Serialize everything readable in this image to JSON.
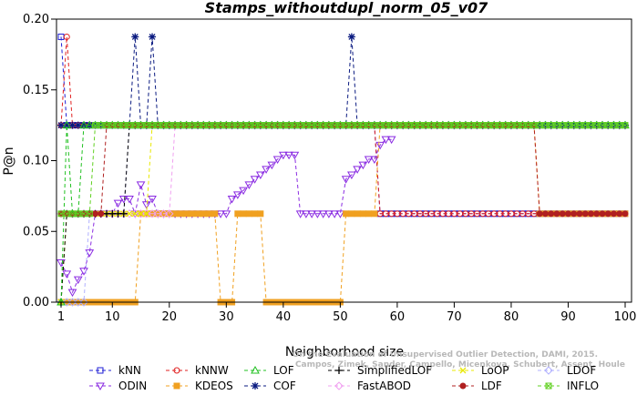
{
  "chart_data": {
    "type": "line",
    "title": "Stamps_withoutdupl_norm_05_v07",
    "xlabel": "Neighborhood size",
    "ylabel": "P@n",
    "xlim": [
      1,
      100
    ],
    "ylim": [
      0,
      0.2
    ],
    "xticks": [
      1,
      10,
      20,
      30,
      40,
      50,
      60,
      70,
      80,
      90,
      100
    ],
    "yticks": [
      0.0,
      0.05,
      0.1,
      0.15,
      0.2
    ],
    "ytick_labels": [
      "0.00",
      "0.05",
      "0.10",
      "0.15",
      "0.20"
    ],
    "grid": false,
    "legend_position": "bottom",
    "watermark_lines": [
      "Campos, Zimek, Sander, Campello, Micenkova, Schubert, Assent, Houle",
      "On the Evaluation of Unsupervised Outlier Detection, DAMI, 2015."
    ],
    "series": [
      {
        "name": "kNN",
        "color": "#1f1fd6",
        "marker": "square",
        "segments": [
          [
            1,
            0.1875,
            1
          ],
          [
            2,
            0.125,
            56
          ],
          [
            57,
            0.0625,
            100
          ]
        ]
      },
      {
        "name": "kNNW",
        "color": "#e02020",
        "marker": "circle",
        "segments": [
          [
            1,
            0.125,
            1
          ],
          [
            2,
            0.1875,
            2
          ],
          [
            3,
            0.125,
            56
          ],
          [
            57,
            0.0625,
            100
          ]
        ]
      },
      {
        "name": "LOF",
        "color": "#20c020",
        "marker": "triangle-up",
        "segments": [
          [
            1,
            0.0,
            1
          ],
          [
            2,
            0.125,
            2
          ],
          [
            3,
            0.0625,
            4
          ],
          [
            5,
            0.125,
            100
          ]
        ]
      },
      {
        "name": "SimplifiedLOF",
        "color": "#000000",
        "marker": "plus",
        "segments": [
          [
            1,
            0.0,
            1
          ],
          [
            2,
            0.0625,
            12
          ],
          [
            13,
            0.125,
            100
          ]
        ]
      },
      {
        "name": "LoOP",
        "color": "#e8e800",
        "marker": "x",
        "segments": [
          [
            1,
            0.0,
            1
          ],
          [
            2,
            0.0625,
            16
          ],
          [
            17,
            0.125,
            100
          ]
        ]
      },
      {
        "name": "LDOF",
        "color": "#b0b0ff",
        "marker": "diamond",
        "segments": [
          [
            1,
            0.0,
            5
          ],
          [
            6,
            0.0625,
            12
          ],
          [
            13,
            0.125,
            100
          ]
        ]
      },
      {
        "name": "ODIN",
        "color": "#8a2be2",
        "marker": "triangle-down",
        "points": [
          [
            1,
            0.028
          ],
          [
            2,
            0.02
          ],
          [
            3,
            0.007
          ],
          [
            4,
            0.016
          ],
          [
            5,
            0.022
          ],
          [
            6,
            0.035
          ],
          [
            7,
            0.0625
          ],
          [
            8,
            0.0625
          ],
          [
            9,
            0.0625
          ],
          [
            10,
            0.0625
          ],
          [
            11,
            0.07
          ],
          [
            12,
            0.073
          ],
          [
            13,
            0.073
          ],
          [
            14,
            0.0625
          ],
          [
            15,
            0.083
          ],
          [
            16,
            0.069
          ],
          [
            17,
            0.073
          ],
          [
            18,
            0.0625
          ],
          [
            19,
            0.0625
          ],
          [
            20,
            0.0625
          ],
          [
            21,
            0.0625
          ],
          [
            22,
            0.0625
          ],
          [
            23,
            0.0625
          ],
          [
            24,
            0.0625
          ],
          [
            25,
            0.0625
          ],
          [
            26,
            0.0625
          ],
          [
            27,
            0.0625
          ],
          [
            28,
            0.0625
          ],
          [
            29,
            0.0625
          ],
          [
            30,
            0.0625
          ],
          [
            31,
            0.073
          ],
          [
            32,
            0.076
          ],
          [
            33,
            0.079
          ],
          [
            34,
            0.083
          ],
          [
            35,
            0.087
          ],
          [
            36,
            0.09
          ],
          [
            37,
            0.094
          ],
          [
            38,
            0.097
          ],
          [
            39,
            0.101
          ],
          [
            40,
            0.104
          ],
          [
            41,
            0.104
          ],
          [
            42,
            0.104
          ],
          [
            43,
            0.0625
          ],
          [
            44,
            0.0625
          ],
          [
            45,
            0.0625
          ],
          [
            46,
            0.0625
          ],
          [
            47,
            0.0625
          ],
          [
            48,
            0.0625
          ],
          [
            49,
            0.0625
          ],
          [
            50,
            0.0625
          ],
          [
            51,
            0.087
          ],
          [
            52,
            0.09
          ],
          [
            53,
            0.094
          ],
          [
            54,
            0.097
          ],
          [
            55,
            0.101
          ],
          [
            56,
            0.101
          ],
          [
            57,
            0.111
          ],
          [
            58,
            0.115
          ],
          [
            59,
            0.115
          ]
        ]
      },
      {
        "name": "KDEOS",
        "color": "#f0a020",
        "marker": "square-filled",
        "segments": [
          [
            1,
            0.0,
            5
          ],
          [
            6,
            0.0,
            14
          ],
          [
            15,
            0.0625,
            28
          ],
          [
            29,
            0.0,
            31
          ],
          [
            32,
            0.0625,
            36
          ],
          [
            37,
            0.0,
            50
          ],
          [
            51,
            0.0625,
            56
          ],
          [
            57,
            0.125,
            84
          ],
          [
            85,
            0.0625,
            100
          ]
        ]
      },
      {
        "name": "COF",
        "color": "#0a1a80",
        "marker": "star",
        "segments": [
          [
            1,
            0.125,
            13
          ],
          [
            14,
            0.1875,
            14
          ],
          [
            15,
            0.125,
            16
          ],
          [
            17,
            0.1875,
            17
          ],
          [
            18,
            0.125,
            51
          ],
          [
            52,
            0.1875,
            52
          ],
          [
            53,
            0.125,
            100
          ]
        ]
      },
      {
        "name": "FastABOD",
        "color": "#f0a0f0",
        "marker": "diamond",
        "segments": [
          [
            1,
            0.0625,
            20
          ],
          [
            21,
            0.125,
            100
          ]
        ]
      },
      {
        "name": "LDF",
        "color": "#b02020",
        "marker": "circle-filled",
        "segments": [
          [
            1,
            0.0625,
            8
          ],
          [
            9,
            0.125,
            84
          ],
          [
            85,
            0.0625,
            100
          ]
        ]
      },
      {
        "name": "INFLO",
        "color": "#60d020",
        "marker": "square-x",
        "segments": [
          [
            1,
            0.0625,
            6
          ],
          [
            7,
            0.125,
            100
          ]
        ]
      }
    ]
  }
}
